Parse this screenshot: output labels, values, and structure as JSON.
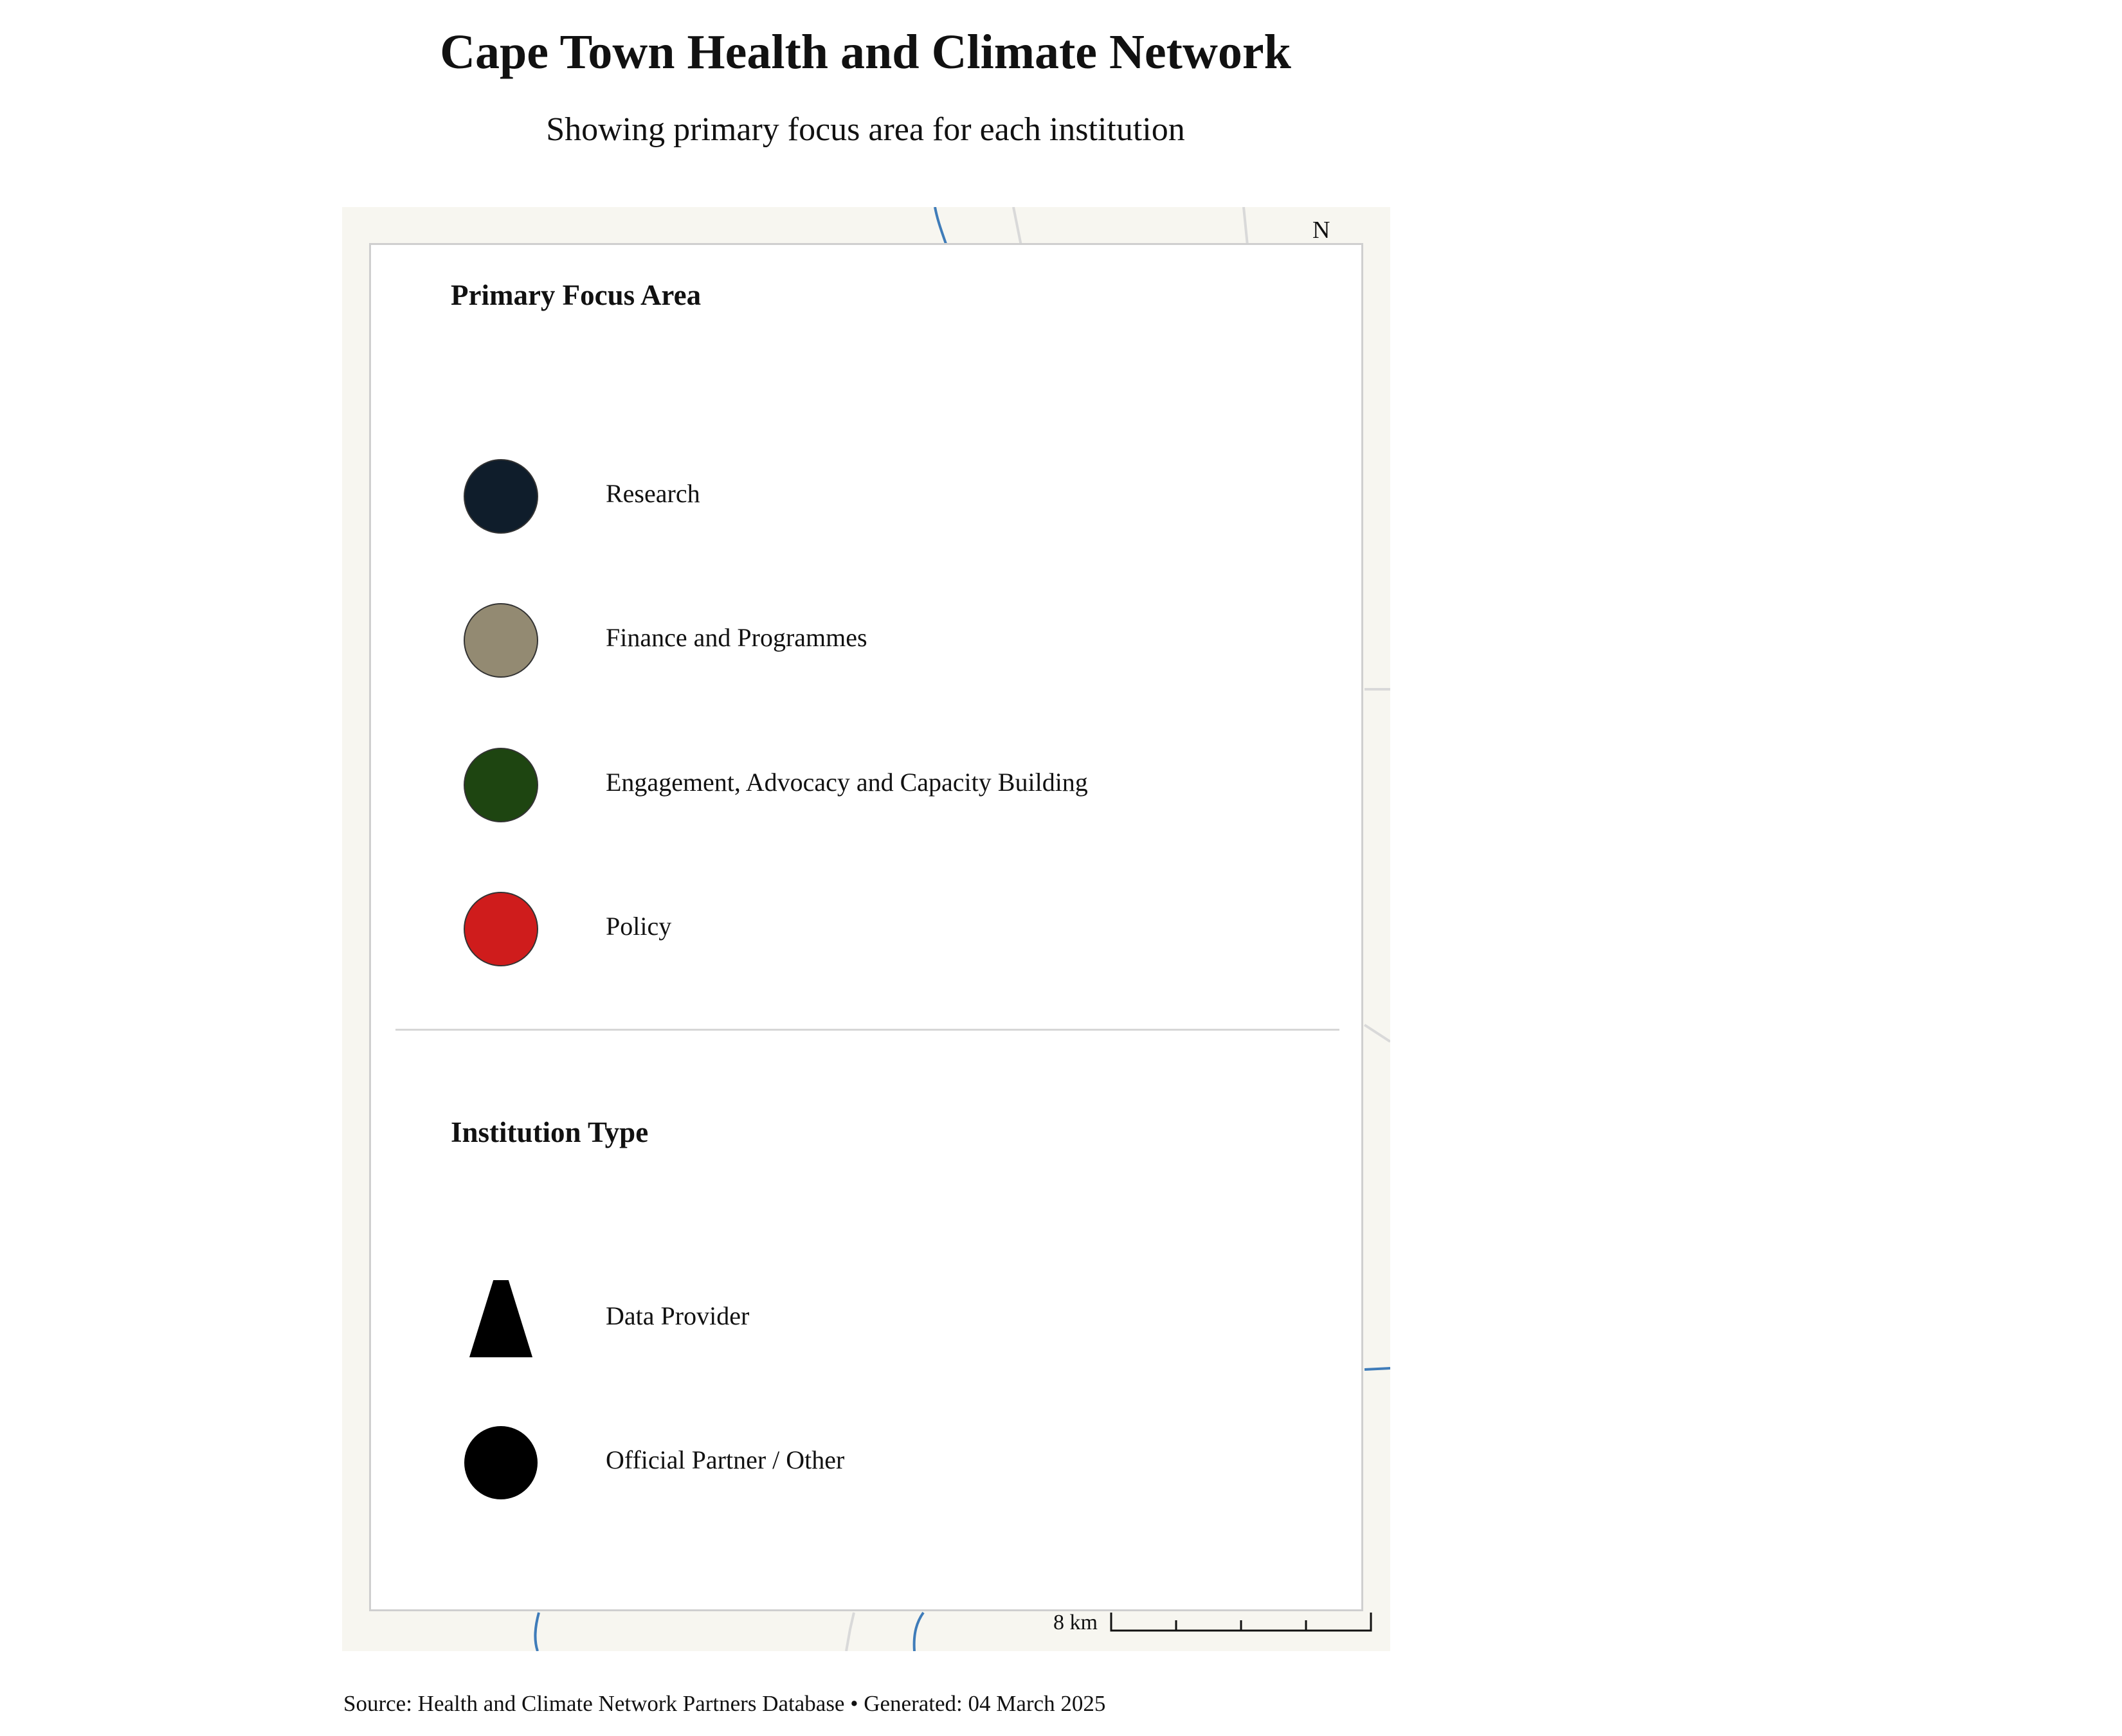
{
  "title": "Cape Town Health and Climate Network",
  "subtitle": "Showing primary focus area for each institution",
  "map": {
    "north_label": "N",
    "scale_label": "8 km",
    "background_color": "#f7f6f0",
    "river_color": "#3f7cb9",
    "road_color": "#d9d9d9"
  },
  "legend": {
    "focus_heading": "Primary Focus Area",
    "focus_items": [
      {
        "label": "Research",
        "color": "#0f1d2b"
      },
      {
        "label": "Finance and Programmes",
        "color": "#938a72"
      },
      {
        "label": "Engagement, Advocacy and Capacity Building",
        "color": "#1e4511"
      },
      {
        "label": "Policy",
        "color": "#cf1c1c"
      }
    ],
    "type_heading": "Institution Type",
    "type_items": [
      {
        "label": "Data Provider",
        "shape": "triangle"
      },
      {
        "label": "Official Partner / Other",
        "shape": "circle"
      }
    ]
  },
  "caption": "Source: Health and Climate Network Partners Database • Generated: 04 March 2025"
}
